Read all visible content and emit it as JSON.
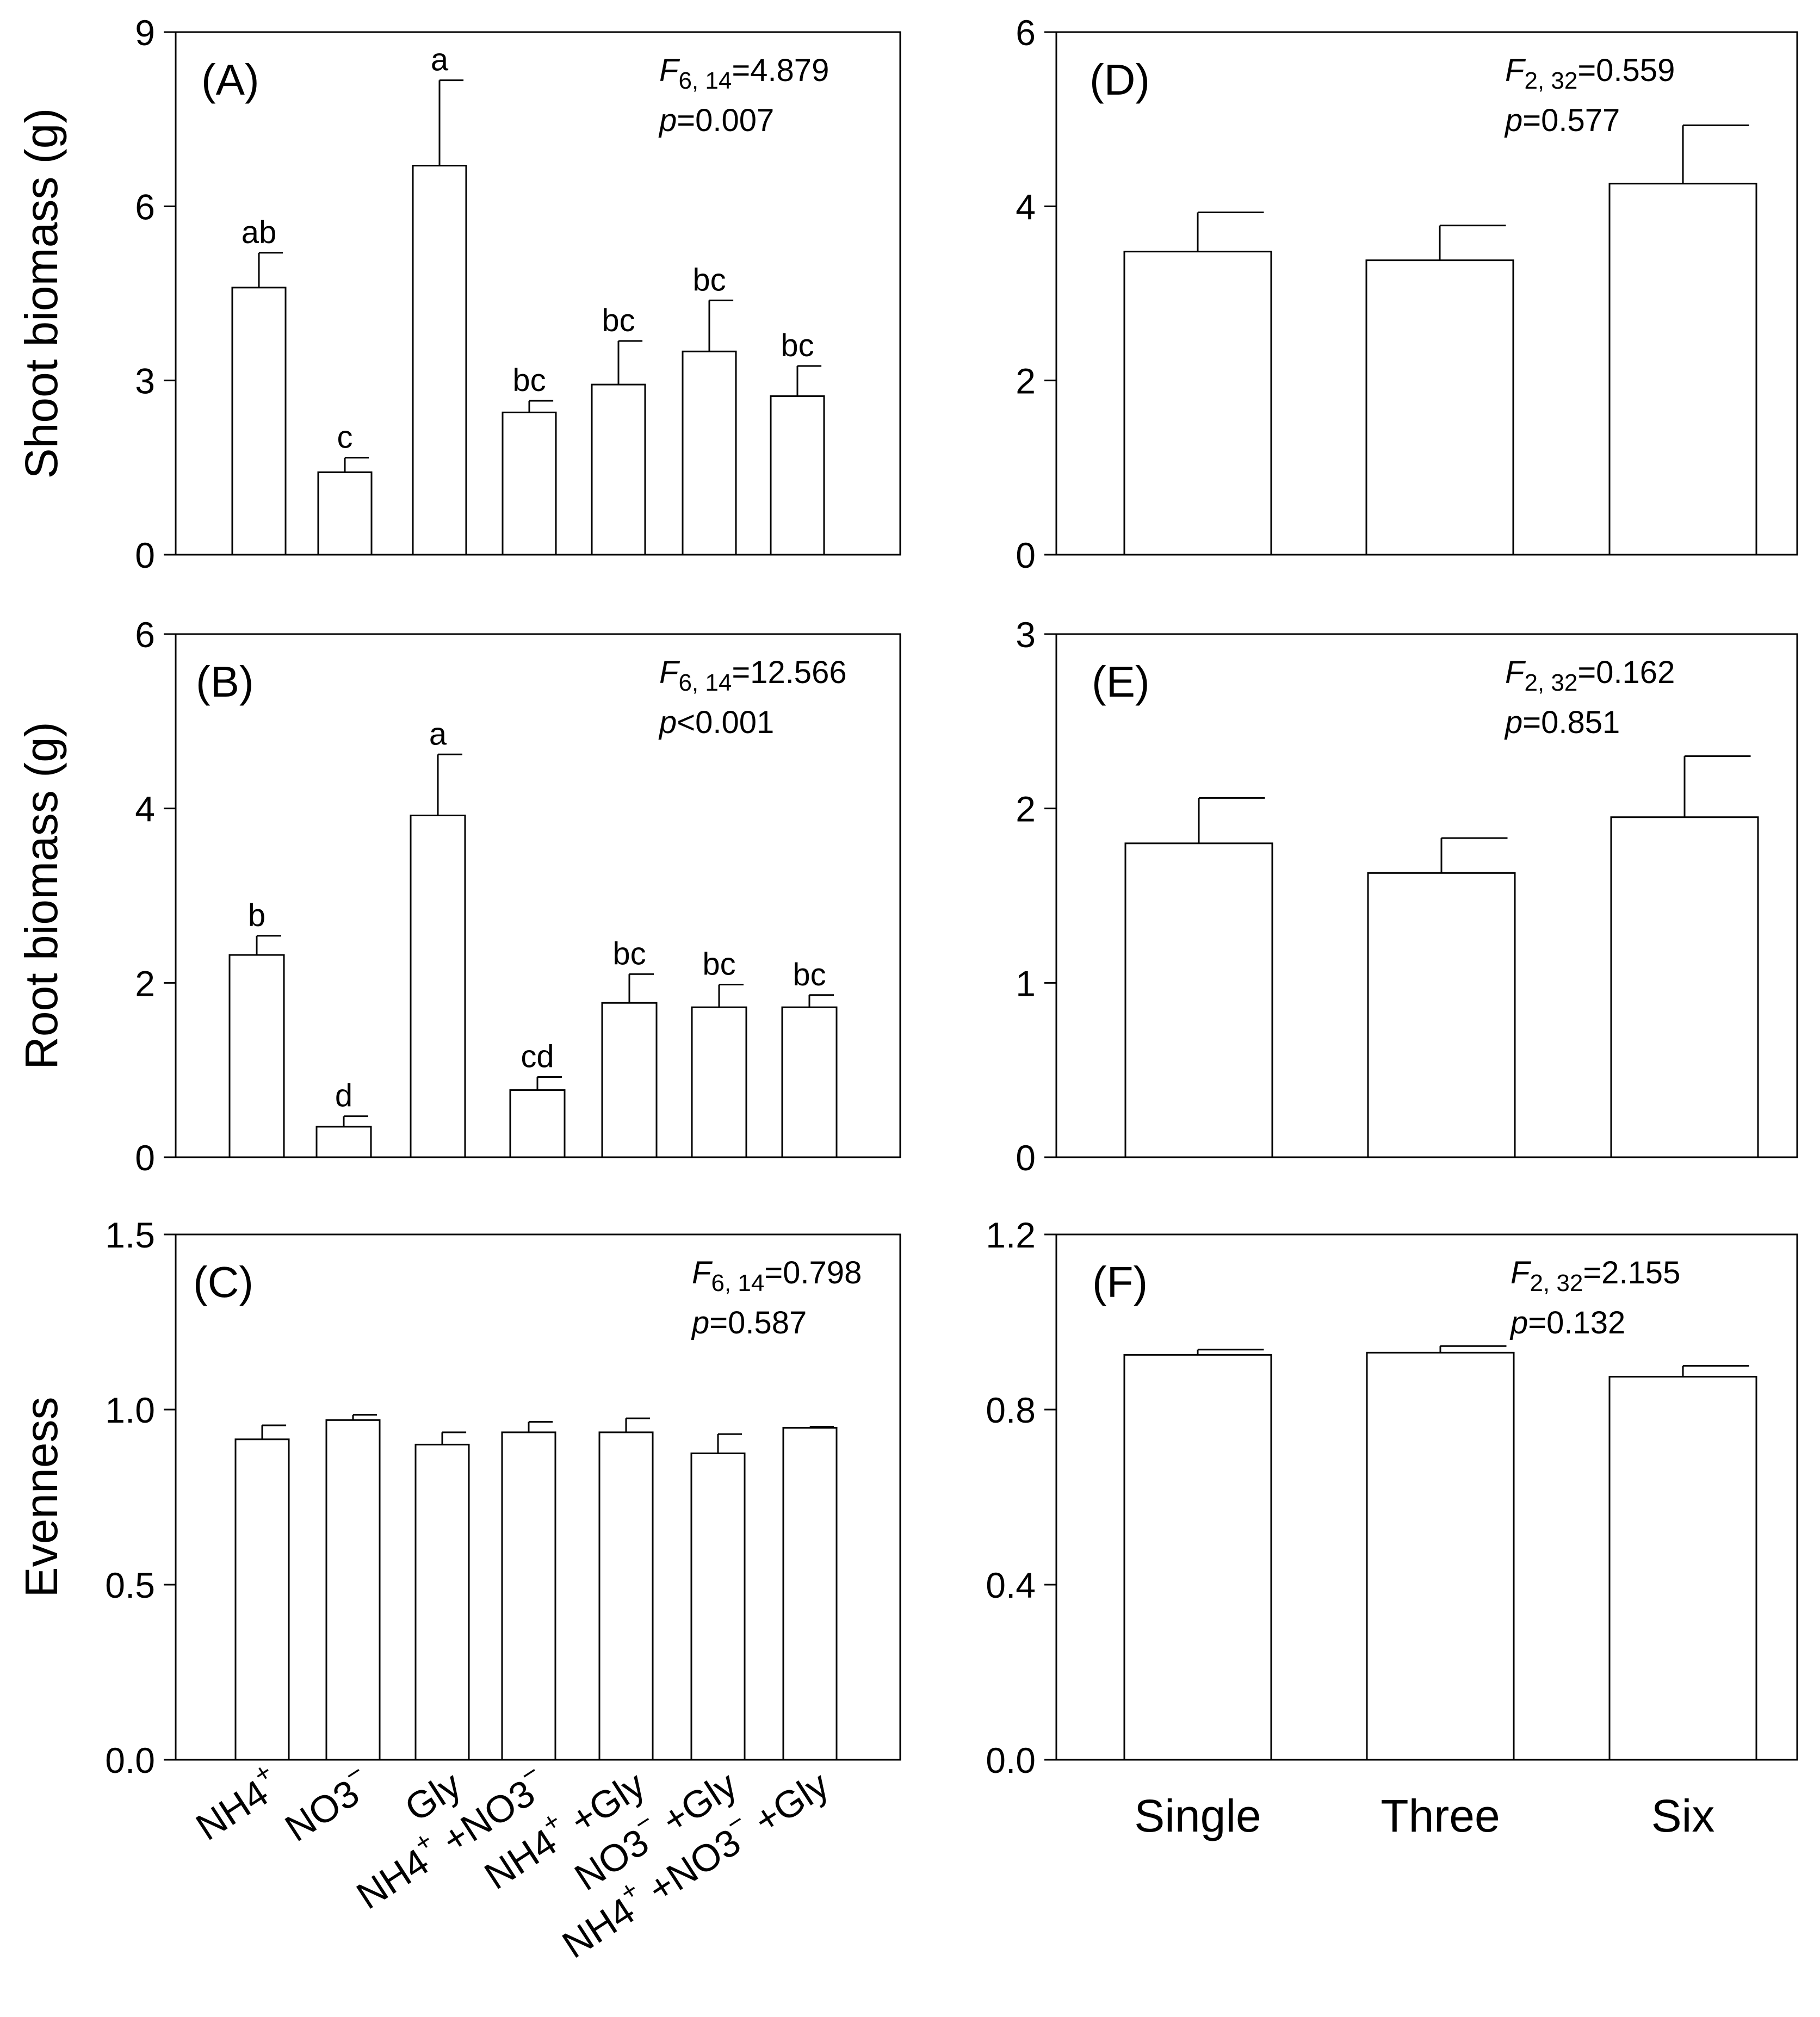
{
  "chart_data": [
    {
      "id": "A",
      "type": "bar",
      "panel_label": "(A)",
      "ylabel": "Shoot biomass (g)",
      "ylim": [
        0,
        9
      ],
      "yticks": [
        "0",
        "3",
        "6",
        "9"
      ],
      "stat_f_sym": "F",
      "stat_f_sub": "6, 14",
      "stat_f_val": "=4.879",
      "stat_p_sym": "p",
      "stat_p_val": "=0.007",
      "categories": [
        "NH4+",
        "NO3−",
        "Gly",
        "NH4+ +NO3−",
        "NH4+ +Gly",
        "NO3− +Gly",
        "NH4+ +NO3− +Gly"
      ],
      "values": [
        4.6,
        1.42,
        6.7,
        2.45,
        2.93,
        3.5,
        2.73
      ],
      "errors": [
        0.6,
        0.25,
        1.47,
        0.2,
        0.75,
        0.88,
        0.52
      ],
      "letters": [
        "ab",
        "c",
        "a",
        "bc",
        "bc",
        "bc",
        "bc"
      ]
    },
    {
      "id": "B",
      "type": "bar",
      "panel_label": "(B)",
      "ylabel": "Root biomass (g)",
      "ylim": [
        0,
        6
      ],
      "yticks": [
        "0",
        "2",
        "4",
        "6"
      ],
      "stat_f_sym": "F",
      "stat_f_sub": "6, 14",
      "stat_f_val": "=12.566",
      "stat_p_sym": "p",
      "stat_p_val": "<0.001",
      "categories": [
        "NH4+",
        "NO3−",
        "Gly",
        "NH4+ +NO3−",
        "NH4+ +Gly",
        "NO3− +Gly",
        "NH4+ +NO3− +Gly"
      ],
      "values": [
        2.32,
        0.35,
        3.92,
        0.77,
        1.77,
        1.72,
        1.72
      ],
      "errors": [
        0.22,
        0.12,
        0.7,
        0.15,
        0.33,
        0.26,
        0.14
      ],
      "letters": [
        "b",
        "d",
        "a",
        "cd",
        "bc",
        "bc",
        "bc"
      ]
    },
    {
      "id": "C",
      "type": "bar",
      "panel_label": "(C)",
      "ylabel": "Evenness",
      "ylim": [
        0,
        1.5
      ],
      "yticks": [
        "0.0",
        "0.5",
        "1.0",
        "1.5"
      ],
      "stat_f_sym": "F",
      "stat_f_sub": "6, 14",
      "stat_f_val": "=0.798",
      "stat_p_sym": "p",
      "stat_p_val": "=0.587",
      "categories": [
        "NH4+",
        "NO3−",
        "Gly",
        "NH4+ +NO3−",
        "NH4+ +Gly",
        "NO3− +Gly",
        "NH4+ +NO3− +Gly"
      ],
      "values": [
        0.915,
        0.97,
        0.9,
        0.935,
        0.935,
        0.875,
        0.948
      ],
      "errors": [
        0.04,
        0.015,
        0.035,
        0.03,
        0.04,
        0.055,
        0.003
      ],
      "letters": []
    },
    {
      "id": "D",
      "type": "bar",
      "panel_label": "(D)",
      "ylabel": "",
      "ylim": [
        0,
        6
      ],
      "yticks": [
        "0",
        "2",
        "4",
        "6"
      ],
      "stat_f_sym": "F",
      "stat_f_sub": "2, 32",
      "stat_f_val": "=0.559",
      "stat_p_sym": "p",
      "stat_p_val": "=0.577",
      "categories": [
        "Single",
        "Three",
        "Six"
      ],
      "values": [
        3.48,
        3.38,
        4.26
      ],
      "errors": [
        0.45,
        0.4,
        0.67
      ],
      "letters": []
    },
    {
      "id": "E",
      "type": "bar",
      "panel_label": "(E)",
      "ylabel": "",
      "ylim": [
        0,
        3
      ],
      "yticks": [
        "0",
        "1",
        "2",
        "3"
      ],
      "stat_f_sym": "F",
      "stat_f_sub": "2, 32",
      "stat_f_val": "=0.162",
      "stat_p_sym": "p",
      "stat_p_val": "=0.851",
      "categories": [
        "Single",
        "Three",
        "Six"
      ],
      "values": [
        1.8,
        1.63,
        1.95
      ],
      "errors": [
        0.26,
        0.2,
        0.35
      ],
      "letters": []
    },
    {
      "id": "F",
      "type": "bar",
      "panel_label": "(F)",
      "ylabel": "",
      "ylim": [
        0,
        1.2
      ],
      "yticks": [
        "0.0",
        "0.4",
        "0.8",
        "1.2"
      ],
      "stat_f_sym": "F",
      "stat_f_sub": "2, 32",
      "stat_f_val": "=2.155",
      "stat_p_sym": "p",
      "stat_p_val": "=0.132",
      "categories": [
        "Single",
        "Three",
        "Six"
      ],
      "values": [
        0.925,
        0.93,
        0.875
      ],
      "errors": [
        0.012,
        0.015,
        0.025
      ],
      "letters": []
    }
  ],
  "left_xlabels": [
    {
      "base": "NH4",
      "sup": "+"
    },
    {
      "base": "NO3",
      "sup": "−"
    },
    {
      "base": "Gly",
      "sup": ""
    },
    {
      "parts": [
        {
          "base": "NH4",
          "sup": "+"
        },
        {
          "base": " +NO3",
          "sup": "−"
        }
      ]
    },
    {
      "parts": [
        {
          "base": "NH4",
          "sup": "+"
        },
        {
          "base": " +Gly",
          "sup": ""
        }
      ]
    },
    {
      "parts": [
        {
          "base": "NO3",
          "sup": "−"
        },
        {
          "base": " +Gly",
          "sup": ""
        }
      ]
    },
    {
      "parts": [
        {
          "base": "NH4",
          "sup": "+"
        },
        {
          "base": " +NO3",
          "sup": "−"
        },
        {
          "base": " +Gly",
          "sup": ""
        }
      ]
    }
  ],
  "right_xlabels": [
    "Single",
    "Three",
    "Six"
  ]
}
